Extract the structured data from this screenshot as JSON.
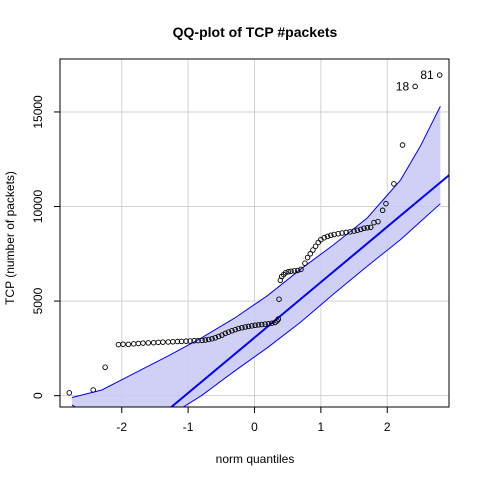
{
  "chart_data": {
    "type": "scatter",
    "title": "QQ-plot of TCP #packets",
    "xlabel": "norm quantiles",
    "ylabel": "TCP (number of packets)",
    "xlim": [
      -2.93,
      2.93
    ],
    "ylim": [
      -600,
      17800
    ],
    "x_ticks": [
      -2,
      -1,
      0,
      1,
      2
    ],
    "y_ticks": [
      0,
      5000,
      10000,
      15000
    ],
    "grid": true,
    "legend": "none",
    "colors": {
      "points": "#000000",
      "reference_line": "#0000ff",
      "envelope_fill": "#c8c8f5",
      "envelope_edge": "#0000ff",
      "grid": "#d3d3d3"
    },
    "reference_line": {
      "slope": 2930,
      "intercept": 3070
    },
    "confidence_envelope": {
      "x": [
        -2.75,
        -2.3,
        -1.8,
        -1.3,
        -0.8,
        -0.3,
        0.2,
        0.7,
        1.2,
        1.7,
        2.2,
        2.5,
        2.8
      ],
      "upper": [
        -100,
        300,
        1200,
        2100,
        3050,
        4100,
        5300,
        6700,
        8000,
        9400,
        11400,
        13200,
        15300
      ],
      "lower": [
        -500,
        -1400,
        -1800,
        -1100,
        0,
        1300,
        2550,
        3900,
        5400,
        6850,
        8250,
        9200,
        10150
      ]
    },
    "series": [
      {
        "values": [
          [
            -2.79,
            150
          ],
          [
            -2.43,
            300
          ],
          [
            -2.25,
            1500
          ],
          [
            -2.05,
            2700
          ],
          [
            -1.98,
            2720
          ],
          [
            -1.9,
            2710
          ],
          [
            -1.82,
            2740
          ],
          [
            -1.75,
            2760
          ],
          [
            -1.68,
            2780
          ],
          [
            -1.6,
            2790
          ],
          [
            -1.52,
            2800
          ],
          [
            -1.45,
            2820
          ],
          [
            -1.38,
            2830
          ],
          [
            -1.3,
            2840
          ],
          [
            -1.23,
            2850
          ],
          [
            -1.16,
            2860
          ],
          [
            -1.1,
            2870
          ],
          [
            -1.03,
            2880
          ],
          [
            -0.97,
            2890
          ],
          [
            -0.91,
            2900
          ],
          [
            -0.85,
            2910
          ],
          [
            -0.79,
            2920
          ],
          [
            -0.74,
            2940
          ],
          [
            -0.69,
            2970
          ],
          [
            -0.64,
            3010
          ],
          [
            -0.59,
            3060
          ],
          [
            -0.54,
            3130
          ],
          [
            -0.49,
            3200
          ],
          [
            -0.44,
            3290
          ],
          [
            -0.39,
            3360
          ],
          [
            -0.34,
            3430
          ],
          [
            -0.29,
            3490
          ],
          [
            -0.24,
            3550
          ],
          [
            -0.19,
            3590
          ],
          [
            -0.14,
            3630
          ],
          [
            -0.09,
            3660
          ],
          [
            -0.04,
            3690
          ],
          [
            0.01,
            3720
          ],
          [
            0.06,
            3740
          ],
          [
            0.11,
            3760
          ],
          [
            0.16,
            3780
          ],
          [
            0.21,
            3800
          ],
          [
            0.26,
            3830
          ],
          [
            0.31,
            3870
          ],
          [
            0.34,
            3950
          ],
          [
            0.36,
            4050
          ],
          [
            0.37,
            5100
          ],
          [
            0.39,
            6100
          ],
          [
            0.41,
            6300
          ],
          [
            0.44,
            6400
          ],
          [
            0.47,
            6500
          ],
          [
            0.51,
            6550
          ],
          [
            0.55,
            6580
          ],
          [
            0.6,
            6600
          ],
          [
            0.65,
            6620
          ],
          [
            0.7,
            6680
          ],
          [
            0.76,
            7000
          ],
          [
            0.8,
            7300
          ],
          [
            0.84,
            7500
          ],
          [
            0.88,
            7700
          ],
          [
            0.92,
            7900
          ],
          [
            0.96,
            8100
          ],
          [
            1.0,
            8250
          ],
          [
            1.05,
            8350
          ],
          [
            1.1,
            8420
          ],
          [
            1.15,
            8480
          ],
          [
            1.2,
            8520
          ],
          [
            1.26,
            8560
          ],
          [
            1.32,
            8600
          ],
          [
            1.38,
            8630
          ],
          [
            1.44,
            8660
          ],
          [
            1.5,
            8700
          ],
          [
            1.55,
            8740
          ],
          [
            1.6,
            8790
          ],
          [
            1.65,
            8850
          ],
          [
            1.7,
            8880
          ],
          [
            1.75,
            8900
          ],
          [
            1.8,
            9150
          ],
          [
            1.86,
            9200
          ],
          [
            1.93,
            9800
          ],
          [
            1.98,
            10150
          ],
          [
            2.1,
            11200
          ],
          [
            2.23,
            13250
          ],
          [
            2.42,
            16350
          ],
          [
            2.79,
            16950
          ]
        ]
      }
    ],
    "point_labels": [
      {
        "text": "18",
        "x": 2.42,
        "y": 16350
      },
      {
        "text": "81",
        "x": 2.79,
        "y": 16950
      }
    ]
  }
}
